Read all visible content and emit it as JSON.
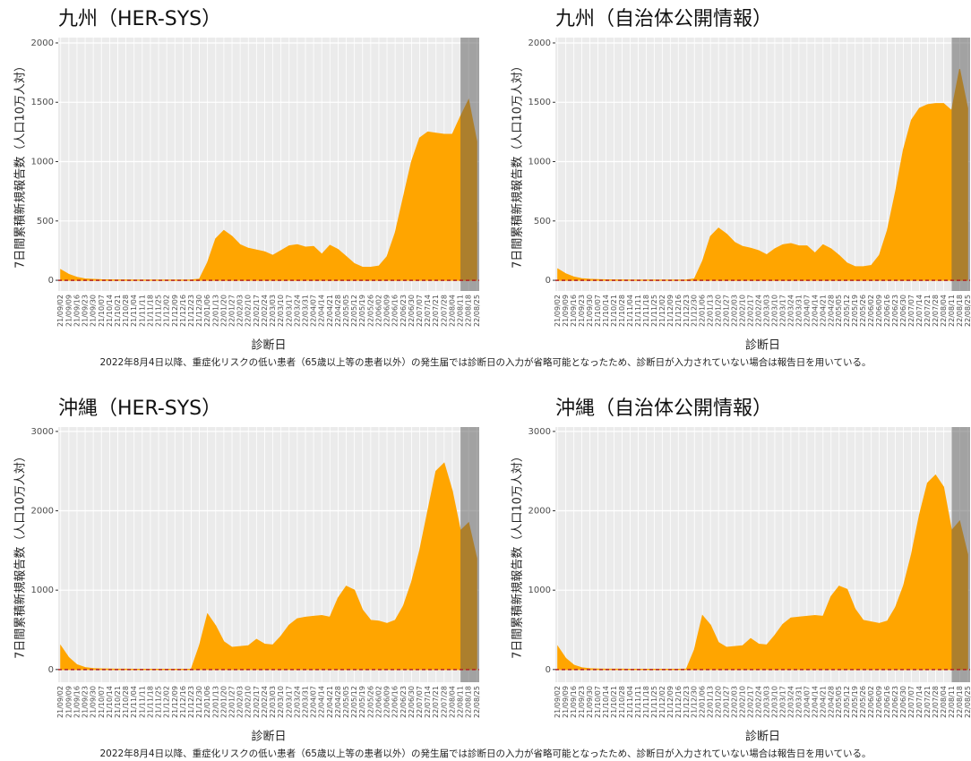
{
  "chart_data": [
    {
      "type": "area",
      "title": "九州（HER-SYS）",
      "ylabel": "7日間累積新規報告数（人口10万人対）",
      "xlabel": "診断日",
      "note": "2022年8月4日以降、重症化リスクの低い患者（65歳以上等の患者以外）の発生届では診断日の入力が省略可能となったため、診断日が入力されていない場合は報告日を用いている。",
      "categories": [
        "21/09/02",
        "21/09/09",
        "21/09/16",
        "21/09/23",
        "21/09/30",
        "21/10/07",
        "21/10/14",
        "21/10/21",
        "21/10/28",
        "21/11/04",
        "21/11/11",
        "21/11/18",
        "21/11/25",
        "21/12/02",
        "21/12/09",
        "21/12/16",
        "21/12/23",
        "21/12/30",
        "22/01/06",
        "22/01/13",
        "22/01/20",
        "22/01/27",
        "22/02/03",
        "22/02/10",
        "22/02/17",
        "22/02/24",
        "22/03/03",
        "22/03/10",
        "22/03/17",
        "22/03/24",
        "22/03/31",
        "22/04/07",
        "22/04/14",
        "22/04/21",
        "22/04/28",
        "22/05/05",
        "22/05/12",
        "22/05/19",
        "22/05/26",
        "22/06/02",
        "22/06/09",
        "22/06/16",
        "22/06/23",
        "22/06/30",
        "22/07/07",
        "22/07/14",
        "22/07/21",
        "22/07/28",
        "22/08/04",
        "22/08/11",
        "22/08/18",
        "22/08/25"
      ],
      "values": [
        90,
        50,
        25,
        12,
        8,
        5,
        4,
        3,
        3,
        2,
        2,
        2,
        2,
        2,
        2,
        2,
        3,
        10,
        150,
        350,
        420,
        370,
        300,
        270,
        255,
        240,
        210,
        250,
        290,
        300,
        280,
        285,
        220,
        295,
        260,
        200,
        140,
        110,
        110,
        120,
        200,
        400,
        700,
        1000,
        1200,
        1250,
        1240,
        1230,
        1230,
        1380,
        1520,
        1170
      ],
      "color": "#ffa500",
      "ylim": [
        -90,
        2045
      ],
      "yticks": [
        0,
        500,
        1000,
        1500,
        2000
      ],
      "grid": true,
      "hline": 0,
      "hline_color": "#b22222",
      "shaded_range": [
        "22/08/11",
        "22/08/25"
      ]
    },
    {
      "type": "area",
      "title": "九州（自治体公開情報）",
      "ylabel": "7日間累積新規報告数（人口10万人対）",
      "xlabel": "診断日",
      "categories": [
        "21/09/02",
        "21/09/09",
        "21/09/16",
        "21/09/23",
        "21/09/30",
        "21/10/07",
        "21/10/14",
        "21/10/21",
        "21/10/28",
        "21/11/04",
        "21/11/11",
        "21/11/18",
        "21/11/25",
        "21/12/02",
        "21/12/09",
        "21/12/16",
        "21/12/23",
        "21/12/30",
        "22/01/06",
        "22/01/13",
        "22/01/20",
        "22/01/27",
        "22/02/03",
        "22/02/10",
        "22/02/17",
        "22/02/24",
        "22/03/03",
        "22/03/10",
        "22/03/17",
        "22/03/24",
        "22/03/31",
        "22/04/07",
        "22/04/14",
        "22/04/21",
        "22/04/28",
        "22/05/05",
        "22/05/12",
        "22/05/19",
        "22/05/26",
        "22/06/02",
        "22/06/09",
        "22/06/16",
        "22/06/23",
        "22/06/30",
        "22/07/07",
        "22/07/14",
        "22/07/21",
        "22/07/28",
        "22/08/04",
        "22/08/11",
        "22/08/18",
        "22/08/25"
      ],
      "values": [
        95,
        55,
        28,
        14,
        9,
        6,
        4,
        3,
        3,
        2,
        2,
        2,
        2,
        2,
        2,
        2,
        3,
        12,
        160,
        370,
        440,
        390,
        320,
        285,
        270,
        250,
        215,
        265,
        300,
        310,
        290,
        290,
        230,
        300,
        265,
        210,
        145,
        115,
        115,
        125,
        210,
        420,
        740,
        1100,
        1350,
        1450,
        1480,
        1490,
        1490,
        1430,
        1780,
        1450
      ],
      "color": "#ffa500",
      "ylim": [
        -90,
        2045
      ],
      "yticks": [
        0,
        500,
        1000,
        1500,
        2000
      ],
      "grid": true,
      "hline": 0,
      "hline_color": "#b22222",
      "shaded_range": [
        "22/08/11",
        "22/08/25"
      ]
    },
    {
      "type": "area",
      "title": "沖縄（HER-SYS）",
      "ylabel": "7日間累積新規報告数（人口10万人対）",
      "xlabel": "診断日",
      "note": "2022年8月4日以降、重症化リスクの低い患者（65歳以上等の患者以外）の発生届では診断日の入力が省略可能となったため、診断日が入力されていない場合は報告日を用いている。",
      "categories": [
        "21/09/02",
        "21/09/09",
        "21/09/16",
        "21/09/23",
        "21/09/30",
        "21/10/07",
        "21/10/14",
        "21/10/21",
        "21/10/28",
        "21/11/04",
        "21/11/11",
        "21/11/18",
        "21/11/25",
        "21/12/02",
        "21/12/09",
        "21/12/16",
        "21/12/23",
        "21/12/30",
        "22/01/06",
        "22/01/13",
        "22/01/20",
        "22/01/27",
        "22/02/03",
        "22/02/10",
        "22/02/17",
        "22/02/24",
        "22/03/03",
        "22/03/10",
        "22/03/17",
        "22/03/24",
        "22/03/31",
        "22/04/07",
        "22/04/14",
        "22/04/21",
        "22/04/28",
        "22/05/05",
        "22/05/12",
        "22/05/19",
        "22/05/26",
        "22/06/02",
        "22/06/09",
        "22/06/16",
        "22/06/23",
        "22/06/30",
        "22/07/07",
        "22/07/14",
        "22/07/21",
        "22/07/28",
        "22/08/04",
        "22/08/11",
        "22/08/18",
        "22/08/25"
      ],
      "values": [
        300,
        150,
        60,
        25,
        12,
        8,
        6,
        5,
        5,
        4,
        4,
        4,
        4,
        4,
        4,
        4,
        5,
        300,
        700,
        550,
        350,
        280,
        290,
        300,
        380,
        320,
        310,
        420,
        560,
        640,
        660,
        670,
        680,
        660,
        900,
        1050,
        1000,
        750,
        620,
        610,
        580,
        620,
        800,
        1100,
        1500,
        2000,
        2500,
        2600,
        2250,
        1750,
        1850,
        1400
      ],
      "color": "#ffa500",
      "ylim": [
        -160,
        3055
      ],
      "yticks": [
        0,
        1000,
        2000,
        3000
      ],
      "grid": true,
      "hline": 0,
      "hline_color": "#b22222",
      "shaded_range": [
        "22/08/11",
        "22/08/25"
      ]
    },
    {
      "type": "area",
      "title": "沖縄（自治体公開情報）",
      "ylabel": "7日間累積新規報告数（人口10万人対）",
      "xlabel": "診断日",
      "categories": [
        "21/09/02",
        "21/09/09",
        "21/09/16",
        "21/09/23",
        "21/09/30",
        "21/10/07",
        "21/10/14",
        "21/10/21",
        "21/10/28",
        "21/11/04",
        "21/11/11",
        "21/11/18",
        "21/11/25",
        "21/12/02",
        "21/12/09",
        "21/12/16",
        "21/12/23",
        "21/12/30",
        "22/01/06",
        "22/01/13",
        "22/01/20",
        "22/01/27",
        "22/02/03",
        "22/02/10",
        "22/02/17",
        "22/02/24",
        "22/03/03",
        "22/03/10",
        "22/03/17",
        "22/03/24",
        "22/03/31",
        "22/04/07",
        "22/04/14",
        "22/04/21",
        "22/04/28",
        "22/05/05",
        "22/05/12",
        "22/05/19",
        "22/05/26",
        "22/06/02",
        "22/06/09",
        "22/06/16",
        "22/06/23",
        "22/06/30",
        "22/07/07",
        "22/07/14",
        "22/07/21",
        "22/07/28",
        "22/08/04",
        "22/08/11",
        "22/08/18",
        "22/08/25"
      ],
      "values": [
        290,
        140,
        55,
        22,
        10,
        7,
        5,
        5,
        5,
        4,
        4,
        4,
        4,
        4,
        4,
        4,
        5,
        250,
        680,
        560,
        340,
        280,
        290,
        300,
        390,
        320,
        310,
        430,
        570,
        650,
        660,
        670,
        680,
        670,
        920,
        1050,
        1010,
        760,
        620,
        600,
        580,
        610,
        780,
        1050,
        1450,
        1950,
        2350,
        2450,
        2300,
        1750,
        1870,
        1450
      ],
      "color": "#ffa500",
      "ylim": [
        -160,
        3055
      ],
      "yticks": [
        0,
        1000,
        2000,
        3000
      ],
      "grid": true,
      "hline": 0,
      "hline_color": "#b22222",
      "shaded_range": [
        "22/08/11",
        "22/08/25"
      ]
    }
  ]
}
